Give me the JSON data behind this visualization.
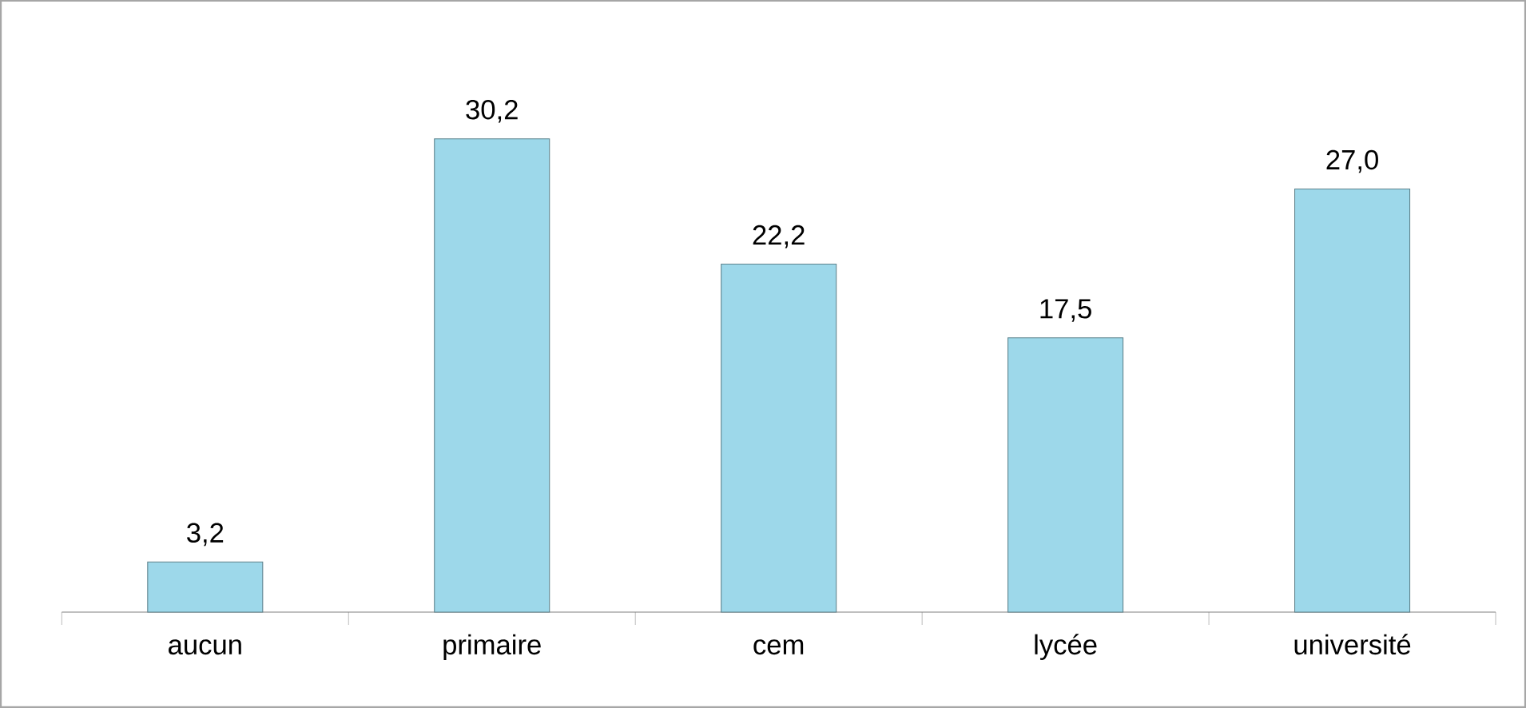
{
  "chart_data": {
    "type": "bar",
    "categories": [
      "aucun",
      "primaire",
      "cem",
      "lycée",
      "université"
    ],
    "values": [
      3.2,
      30.2,
      22.2,
      17.5,
      27.0
    ],
    "value_labels": [
      "3,2",
      "30,2",
      "22,2",
      "17,5",
      "27,0"
    ],
    "color": "#9dd8ea",
    "ylim": [
      0,
      39
    ]
  }
}
